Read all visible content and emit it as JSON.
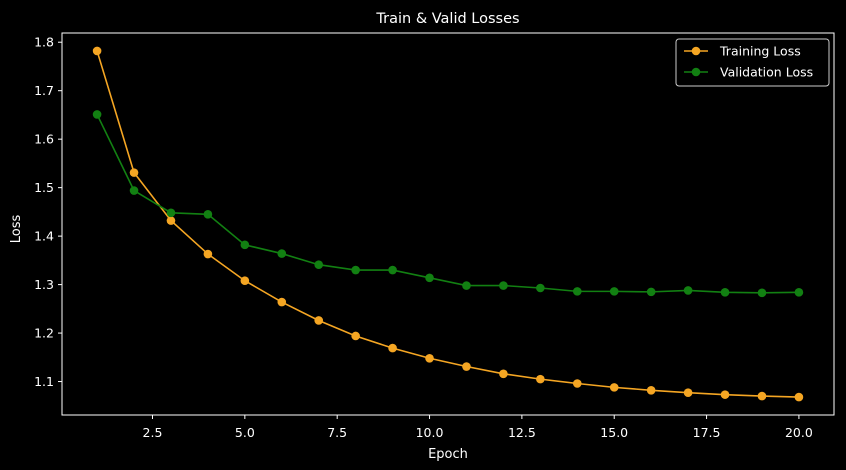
{
  "chart_data": {
    "type": "line",
    "title": "Train & Valid Losses",
    "xlabel": "Epoch",
    "ylabel": "Loss",
    "xlim": [
      0.05,
      20.95
    ],
    "ylim": [
      1.031,
      1.819
    ],
    "xticks": [
      2.5,
      5.0,
      7.5,
      10.0,
      12.5,
      15.0,
      17.5,
      20.0
    ],
    "xtick_labels": [
      "2.5",
      "5.0",
      "7.5",
      "10.0",
      "12.5",
      "15.0",
      "17.5",
      "20.0"
    ],
    "yticks": [
      1.1,
      1.2,
      1.3,
      1.4,
      1.5,
      1.6,
      1.7,
      1.8
    ],
    "ytick_labels": [
      "1.1",
      "1.2",
      "1.3",
      "1.4",
      "1.5",
      "1.6",
      "1.7",
      "1.8"
    ],
    "grid": false,
    "legend_position": "top-right",
    "x": [
      1,
      2,
      3,
      4,
      5,
      6,
      7,
      8,
      9,
      10,
      11,
      12,
      13,
      14,
      15,
      16,
      17,
      18,
      19,
      20
    ],
    "series": [
      {
        "name": "Training Loss",
        "color": "#f5a623",
        "values": [
          1.782,
          1.531,
          1.432,
          1.363,
          1.308,
          1.264,
          1.226,
          1.194,
          1.169,
          1.148,
          1.131,
          1.116,
          1.105,
          1.096,
          1.088,
          1.082,
          1.077,
          1.073,
          1.07,
          1.068
        ]
      },
      {
        "name": "Validation Loss",
        "color": "#128012",
        "values": [
          1.651,
          1.494,
          1.448,
          1.445,
          1.382,
          1.364,
          1.341,
          1.33,
          1.33,
          1.314,
          1.298,
          1.298,
          1.293,
          1.286,
          1.286,
          1.285,
          1.288,
          1.284,
          1.283,
          1.284
        ]
      }
    ]
  }
}
